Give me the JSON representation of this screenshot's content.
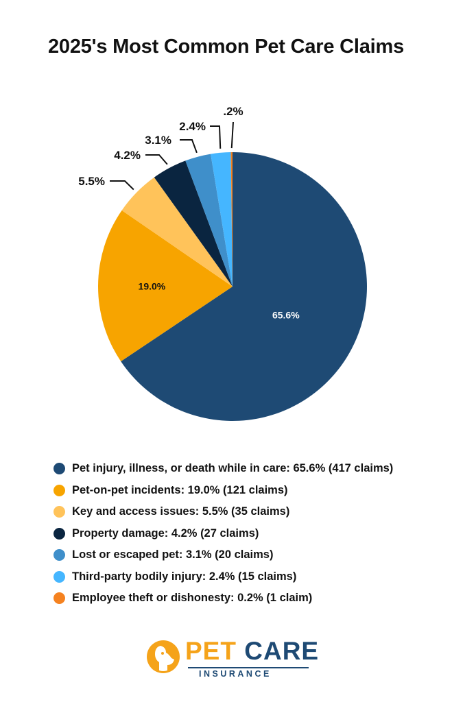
{
  "chart_data": {
    "type": "pie",
    "title": "2025's Most Common Pet Care Claims",
    "slices": [
      {
        "label": "Pet injury, illness, or death while in care: 65.6% (417 claims)",
        "value": 65.6,
        "display": "65.6%",
        "color": "#1e4a74"
      },
      {
        "label": "Pet-on-pet incidents: 19.0% (121 claims)",
        "value": 19.0,
        "display": "19.0%",
        "color": "#f7a400"
      },
      {
        "label": "Key and access issues: 5.5% (35 claims)",
        "value": 5.5,
        "display": "5.5%",
        "color": "#ffc35a"
      },
      {
        "label": "Property damage: 4.2% (27 claims)",
        "value": 4.2,
        "display": "4.2%",
        "color": "#0a2540"
      },
      {
        "label": "Lost or escaped pet: 3.1% (20 claims)",
        "value": 3.1,
        "display": "3.1%",
        "color": "#3f8fca"
      },
      {
        "label": "Third-party bodily injury: 2.4% (15 claims)",
        "value": 2.4,
        "display": "2.4%",
        "color": "#45b6ff"
      },
      {
        "label": "Employee theft or dishonesty: 0.2% (1 claim)",
        "value": 0.2,
        "display": ".2%",
        "color": "#f58220"
      }
    ],
    "legend_position": "bottom"
  },
  "logo": {
    "word1": "PET",
    "word2": "CARE",
    "sub": "INSURANCE"
  }
}
